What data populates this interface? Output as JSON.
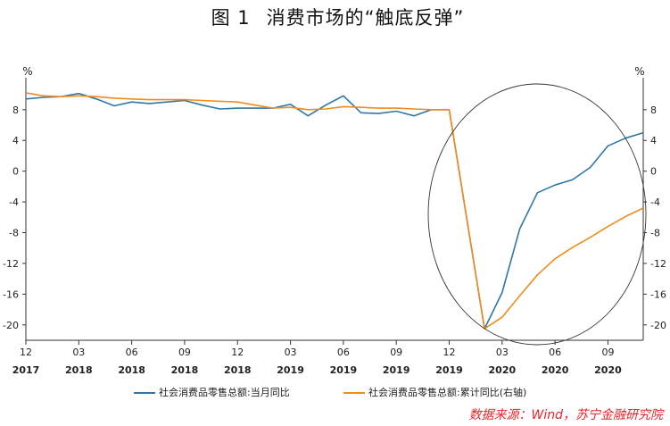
{
  "title": {
    "prefix": "图 1",
    "text": "消费市场的“触底反弹”"
  },
  "source": "数据来源：Wind，苏宁金融研究院",
  "chart_data": {
    "type": "line",
    "unit_left": "%",
    "unit_right": "%",
    "x_ticks": [
      {
        "month": "12",
        "year": "2017"
      },
      {
        "month": "03",
        "year": "2018"
      },
      {
        "month": "06",
        "year": "2018"
      },
      {
        "month": "09",
        "year": "2018"
      },
      {
        "month": "12",
        "year": "2018"
      },
      {
        "month": "03",
        "year": "2019"
      },
      {
        "month": "06",
        "year": "2019"
      },
      {
        "month": "09",
        "year": "2019"
      },
      {
        "month": "12",
        "year": "2019"
      },
      {
        "month": "03",
        "year": "2020"
      },
      {
        "month": "06",
        "year": "2020"
      },
      {
        "month": "09",
        "year": "2020"
      }
    ],
    "y_left": {
      "min": -22,
      "max": 11,
      "ticks": [
        8,
        4,
        0,
        -4,
        -8,
        -12,
        -16,
        -20
      ]
    },
    "y_right": {
      "min": -22,
      "max": 11,
      "ticks": [
        8,
        4,
        0,
        -4,
        -8,
        -12,
        -16,
        -20
      ]
    },
    "x": [
      "2017-12",
      "2018-01",
      "2018-02",
      "2018-03",
      "2018-04",
      "2018-05",
      "2018-06",
      "2018-07",
      "2018-08",
      "2018-09",
      "2018-10",
      "2018-11",
      "2018-12",
      "2019-01",
      "2019-02",
      "2019-03",
      "2019-04",
      "2019-05",
      "2019-06",
      "2019-07",
      "2019-08",
      "2019-09",
      "2019-10",
      "2019-11",
      "2019-12",
      "2020-01",
      "2020-02",
      "2020-03",
      "2020-04",
      "2020-05",
      "2020-06",
      "2020-07",
      "2020-08",
      "2020-09",
      "2020-10",
      "2020-11"
    ],
    "series": [
      {
        "name": "社会消费品零售总额:当月同比",
        "axis": "left",
        "color": "#2e77a8",
        "values": [
          9.4,
          9.6,
          9.7,
          10.1,
          9.4,
          8.5,
          9.0,
          8.8,
          9.0,
          9.2,
          8.6,
          8.1,
          8.2,
          8.2,
          8.2,
          8.7,
          7.2,
          8.6,
          9.8,
          7.6,
          7.5,
          7.8,
          7.2,
          8.0,
          8.0,
          null,
          -20.5,
          -15.8,
          -7.5,
          -2.8,
          -1.8,
          -1.1,
          0.5,
          3.3,
          4.3,
          5.0
        ]
      },
      {
        "name": "社会消费品零售总额:累计同比(右轴)",
        "axis": "right",
        "color": "#f08c1e",
        "values": [
          10.2,
          9.8,
          9.7,
          9.8,
          9.7,
          9.5,
          9.4,
          9.3,
          9.3,
          9.3,
          9.2,
          9.1,
          9.0,
          8.6,
          8.2,
          8.3,
          8.0,
          8.1,
          8.4,
          8.3,
          8.2,
          8.2,
          8.1,
          8.0,
          8.0,
          null,
          -20.5,
          -19.0,
          -16.2,
          -13.5,
          -11.4,
          -9.9,
          -8.6,
          -7.2,
          -5.9,
          -4.8
        ]
      }
    ],
    "annotations": [
      {
        "type": "ellipse",
        "target": "2020 rebound"
      }
    ]
  }
}
